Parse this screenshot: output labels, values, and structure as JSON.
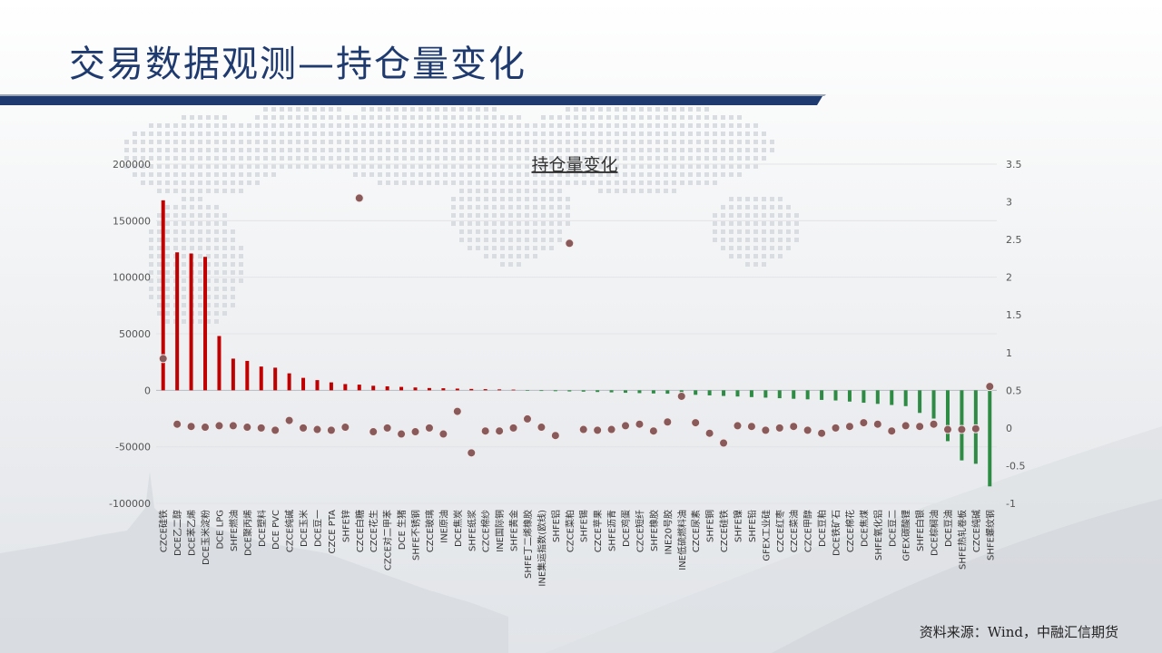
{
  "page": {
    "title": "交易数据观测—持仓量变化",
    "source": "资料来源：Wind，中融汇信期货"
  },
  "colors": {
    "title": "#1f3a6e",
    "up_bar": "#c00000",
    "down_bar": "#2e8b44",
    "dot": "#8a5a5a",
    "axis_text": "#555555",
    "rule": "#1f3a6e"
  },
  "chart_data": {
    "type": "bar",
    "title": "持仓量变化",
    "ylim": [
      -100000,
      200000
    ],
    "y_ticks": [
      -100000,
      -50000,
      0,
      50000,
      100000,
      150000,
      200000
    ],
    "y2lim": [
      -1,
      3.5
    ],
    "y2_ticks": [
      -1,
      -0.5,
      0,
      0.5,
      1,
      1.5,
      2,
      2.5,
      3,
      3.5
    ],
    "y2_tick_labels": [
      "-1",
      "-0.5",
      "0",
      "0.5",
      "1",
      "1.5",
      "2",
      "2.5",
      "3",
      "3.5"
    ],
    "grid": true,
    "legend": "none",
    "categories": [
      "CZCE硅铁",
      "DCE乙二醇",
      "DCE苯乙烯",
      "DCE玉米淀粉",
      "DCE LPG",
      "SHFE燃油",
      "DCE聚丙烯",
      "DCE塑料",
      "DCE PVC",
      "CZCE纯碱",
      "DCE玉米",
      "DCE豆一",
      "CZCE PTA",
      "SHFE锌",
      "CZCE白糖",
      "CZCE花生",
      "CZCE对二甲苯",
      "DCE 生猪",
      "SHFE不锈钢",
      "CZCE玻璃",
      "INE原油",
      "DCE焦炭",
      "SHFE纸浆",
      "CZCE棉纱",
      "INE国际铜",
      "SHFE黄金",
      "SHFE丁二烯橡胶",
      "INE集运指数(欧线)",
      "SHFE铝",
      "CZCE菜粕",
      "SHFE锡",
      "CZCE苹果",
      "SHFE沥青",
      "DCE鸡蛋",
      "CZCE短纤",
      "SHFE橡胶",
      "INE20号胶",
      "INE低硫燃料油",
      "CZCE尿素",
      "SHFE铜",
      "CZCE硅铁",
      "SHFE镍",
      "SHFE铅",
      "GFEX工业硅",
      "CZCE红枣",
      "CZCE菜油",
      "CZCE甲醇",
      "DCE豆粕",
      "DCE铁矿石",
      "CZCE棉花",
      "DCE焦煤",
      "SHFE氧化铝",
      "DCE豆二",
      "GFEX碳酸锂",
      "SHFE白银",
      "DCE棕榈油",
      "DCE豆油",
      "SHFE热轧卷板",
      "CZCE纯碱",
      "SHFE螺纹钢"
    ],
    "series": [
      {
        "values": [
          168000,
          122000,
          121000,
          118000,
          48000,
          28000,
          26000,
          21000,
          20000,
          15000,
          11000,
          9000,
          7000,
          5500,
          5000,
          4000,
          3500,
          3000,
          2500,
          2000,
          1800,
          1500,
          1200,
          1000,
          800,
          600,
          -400,
          -600,
          -800,
          -1000,
          -1200,
          -1500,
          -1800,
          -2200,
          -2500,
          -2800,
          -3000,
          -3200,
          -4000,
          -4500,
          -5000,
          -5500,
          -6000,
          -6500,
          -7000,
          -7500,
          -8000,
          -8500,
          -9000,
          -10000,
          -11000,
          -12000,
          -13000,
          -14000,
          -20000,
          -25000,
          -45000,
          -62000,
          -65000,
          -85000
        ]
      },
      {
        "values": [
          0.92,
          0.05,
          0.02,
          0.01,
          0.03,
          0.03,
          0.01,
          0.0,
          -0.03,
          0.1,
          0.0,
          -0.02,
          -0.03,
          0.01,
          3.05,
          -0.05,
          0.0,
          -0.08,
          -0.05,
          0.0,
          -0.08,
          0.22,
          -0.33,
          -0.04,
          -0.04,
          0.0,
          0.12,
          0.01,
          -0.1,
          2.45,
          -0.02,
          -0.03,
          -0.02,
          0.03,
          0.05,
          -0.04,
          0.08,
          0.42,
          0.07,
          -0.07,
          -0.2,
          0.03,
          0.02,
          -0.03,
          0.0,
          0.02,
          -0.03,
          -0.07,
          0.0,
          0.02,
          0.07,
          0.05,
          -0.04,
          0.03,
          0.02,
          0.05,
          -0.02,
          -0.02,
          -0.01,
          0.55
        ]
      }
    ]
  }
}
